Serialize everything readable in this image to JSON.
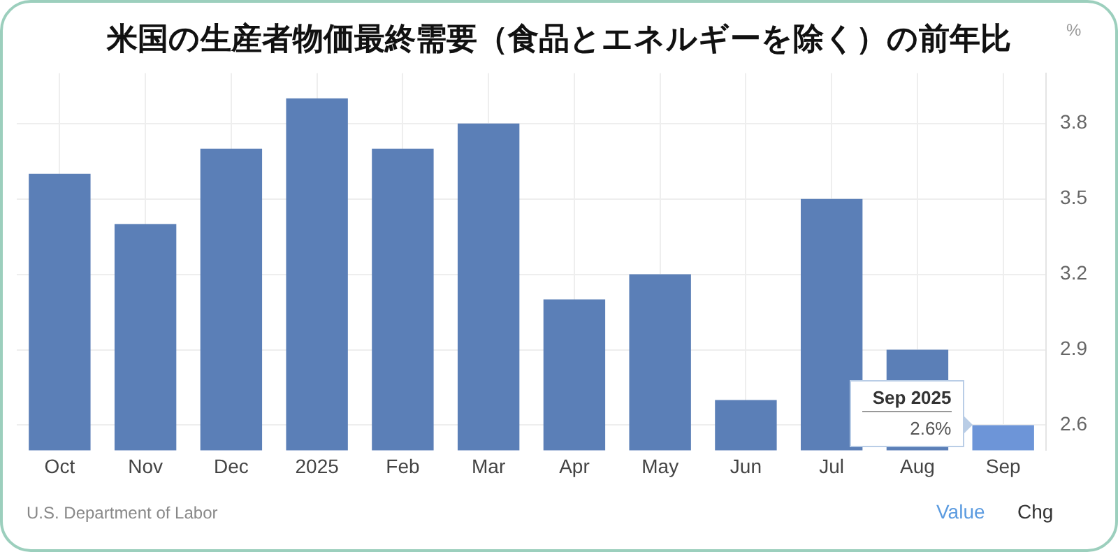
{
  "chart_data": {
    "type": "bar",
    "title": "米国の生産者物価最終需要（食品とエネルギーを除く）の前年比",
    "ylabel": "%",
    "categories": [
      "Oct",
      "Nov",
      "Dec",
      "2025",
      "Feb",
      "Mar",
      "Apr",
      "May",
      "Jun",
      "Jul",
      "Aug",
      "Sep"
    ],
    "values": [
      3.6,
      3.4,
      3.7,
      3.9,
      3.7,
      3.8,
      3.1,
      3.2,
      2.7,
      3.5,
      2.9,
      2.6
    ],
    "colors": [
      "#5b7fb7",
      "#5b7fb7",
      "#5b7fb7",
      "#5b7fb7",
      "#5b7fb7",
      "#5b7fb7",
      "#5b7fb7",
      "#5b7fb7",
      "#5b7fb7",
      "#5b7fb7",
      "#5b7fb7",
      "#6d95d8"
    ],
    "value_labels": [
      null,
      null,
      null,
      null,
      null,
      null,
      null,
      null,
      null,
      null,
      null,
      "2.6%"
    ],
    "ylim": [
      2.5,
      4.0
    ],
    "yticks": [
      2.6,
      2.9,
      3.2,
      3.5,
      3.8
    ],
    "grid": true,
    "annotations": [
      "Sep 2025",
      "U.S. Department of Labor",
      "Value",
      "Chg"
    ]
  }
}
